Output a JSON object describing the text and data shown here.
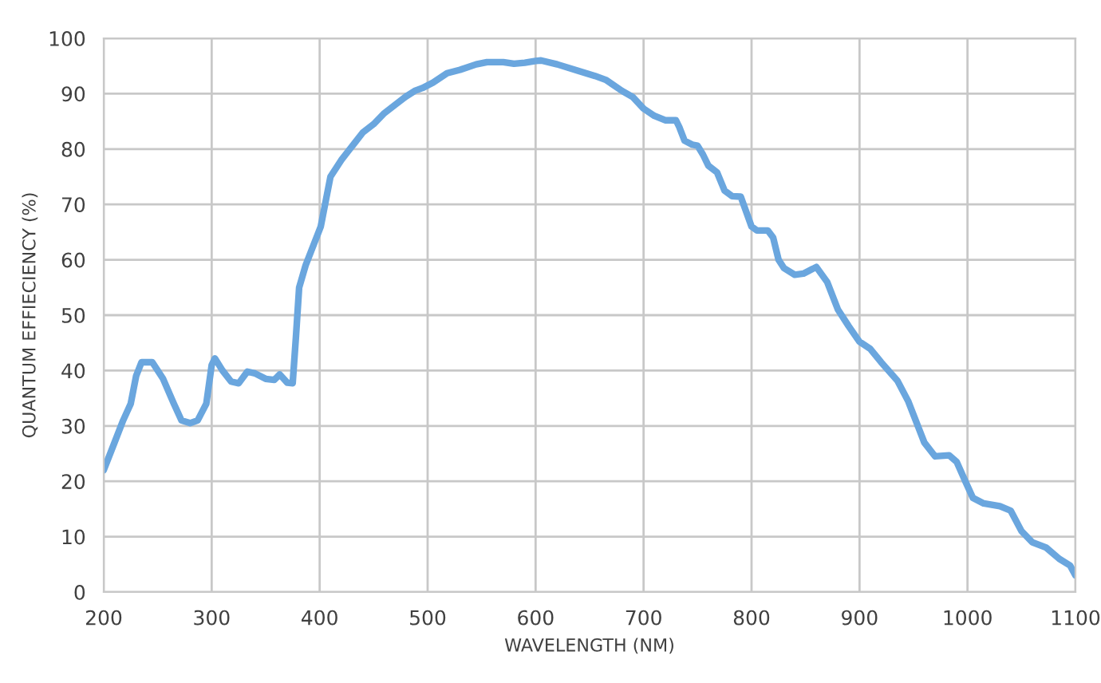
{
  "chart_data": {
    "type": "line",
    "xlabel": "WAVELENGTH (NM)",
    "ylabel": "QUANTUM EFFIECIENCY (%)",
    "x": [
      200,
      210,
      218,
      225,
      230,
      235,
      245,
      255,
      265,
      272,
      280,
      287,
      295,
      300,
      303,
      310,
      318,
      325,
      333,
      340,
      350,
      358,
      363,
      370,
      375,
      378,
      381,
      387,
      395,
      401,
      406,
      410,
      420,
      428,
      432,
      440,
      450,
      460,
      470,
      480,
      488,
      495,
      505,
      518,
      530,
      545,
      555,
      570,
      580,
      590,
      600,
      605,
      620,
      640,
      655,
      665,
      680,
      690,
      700,
      710,
      720,
      730,
      733,
      738,
      745,
      750,
      755,
      760,
      768,
      775,
      782,
      790,
      800,
      805,
      815,
      820,
      825,
      830,
      840,
      848,
      860,
      870,
      880,
      890,
      900,
      910,
      920,
      935,
      945,
      955,
      960,
      970,
      983,
      990,
      998,
      1005,
      1015,
      1030,
      1040,
      1050,
      1060,
      1073,
      1085,
      1095,
      1100
    ],
    "series": [
      {
        "color": "#6aa6de",
        "values": [
          22,
          27,
          31,
          34,
          39,
          41.5,
          41.5,
          38.5,
          34,
          31,
          30.5,
          31,
          34,
          41,
          42.2,
          40,
          38,
          37.7,
          39.8,
          39.5,
          38.5,
          38.3,
          39.3,
          37.8,
          37.7,
          46,
          55,
          59,
          63,
          66,
          71,
          75,
          78,
          80,
          81,
          83,
          84.5,
          86.5,
          88,
          89.5,
          90.5,
          91,
          92,
          93.7,
          94.3,
          95.3,
          95.7,
          95.7,
          95.4,
          95.6,
          95.9,
          96,
          95.3,
          94.1,
          93.2,
          92.5,
          90.5,
          89.4,
          87.3,
          86,
          85.2,
          85.2,
          84,
          81.5,
          80.8,
          80.6,
          79,
          77,
          75.8,
          72.5,
          71.5,
          71.4,
          66,
          65.3,
          65.3,
          64,
          60,
          58.5,
          57.3,
          57.5,
          58.7,
          56,
          51,
          48,
          45.2,
          43.9,
          41.5,
          38.2,
          34.5,
          29.5,
          27,
          24.5,
          24.7,
          23.5,
          20,
          17,
          16,
          15.5,
          14.7,
          11,
          9,
          8,
          6,
          4.8,
          3
        ]
      }
    ],
    "xlim": [
      200,
      1100
    ],
    "xticks": [
      200,
      300,
      400,
      500,
      600,
      700,
      800,
      900,
      1000,
      1100
    ],
    "ylim": [
      0,
      100
    ],
    "yticks": [
      0,
      10,
      20,
      30,
      40,
      50,
      60,
      70,
      80,
      90,
      100
    ],
    "grid": true,
    "marker": "none",
    "line_style": "solid"
  }
}
